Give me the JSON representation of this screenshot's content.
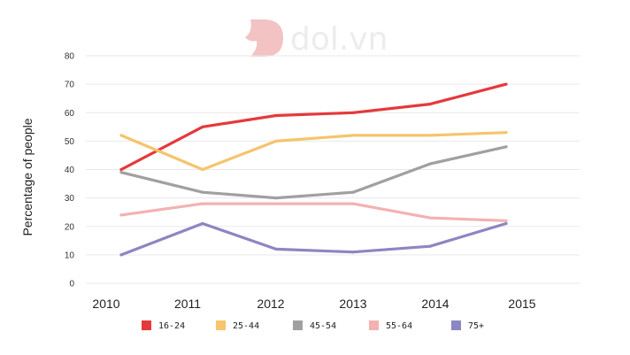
{
  "watermark": {
    "text": "dol.vn"
  },
  "chart_data": {
    "type": "line",
    "title": "",
    "xlabel": "",
    "ylabel": "Percentage of people",
    "x": [
      "2010",
      "2011",
      "2012",
      "2013",
      "2014",
      "2015"
    ],
    "ylim": [
      0,
      80
    ],
    "yticks": [
      "0",
      "10",
      "20",
      "30",
      "40",
      "50",
      "60",
      "70",
      "80"
    ],
    "grid": true,
    "legend": "bottom",
    "series": [
      {
        "name": "16-24",
        "color": "#e5393b",
        "values": [
          40,
          55,
          59,
          60,
          63,
          70
        ]
      },
      {
        "name": "25-44",
        "color": "#f5c46c",
        "values": [
          52,
          40,
          50,
          52,
          52,
          53
        ]
      },
      {
        "name": "45-54",
        "color": "#a0a0a0",
        "values": [
          39,
          32,
          30,
          32,
          42,
          48
        ]
      },
      {
        "name": "55-64",
        "color": "#f4b1b1",
        "values": [
          24,
          28,
          28,
          28,
          23,
          22
        ]
      },
      {
        "name": "75+",
        "color": "#8c86c2",
        "values": [
          10,
          21,
          12,
          11,
          13,
          21
        ]
      }
    ]
  }
}
